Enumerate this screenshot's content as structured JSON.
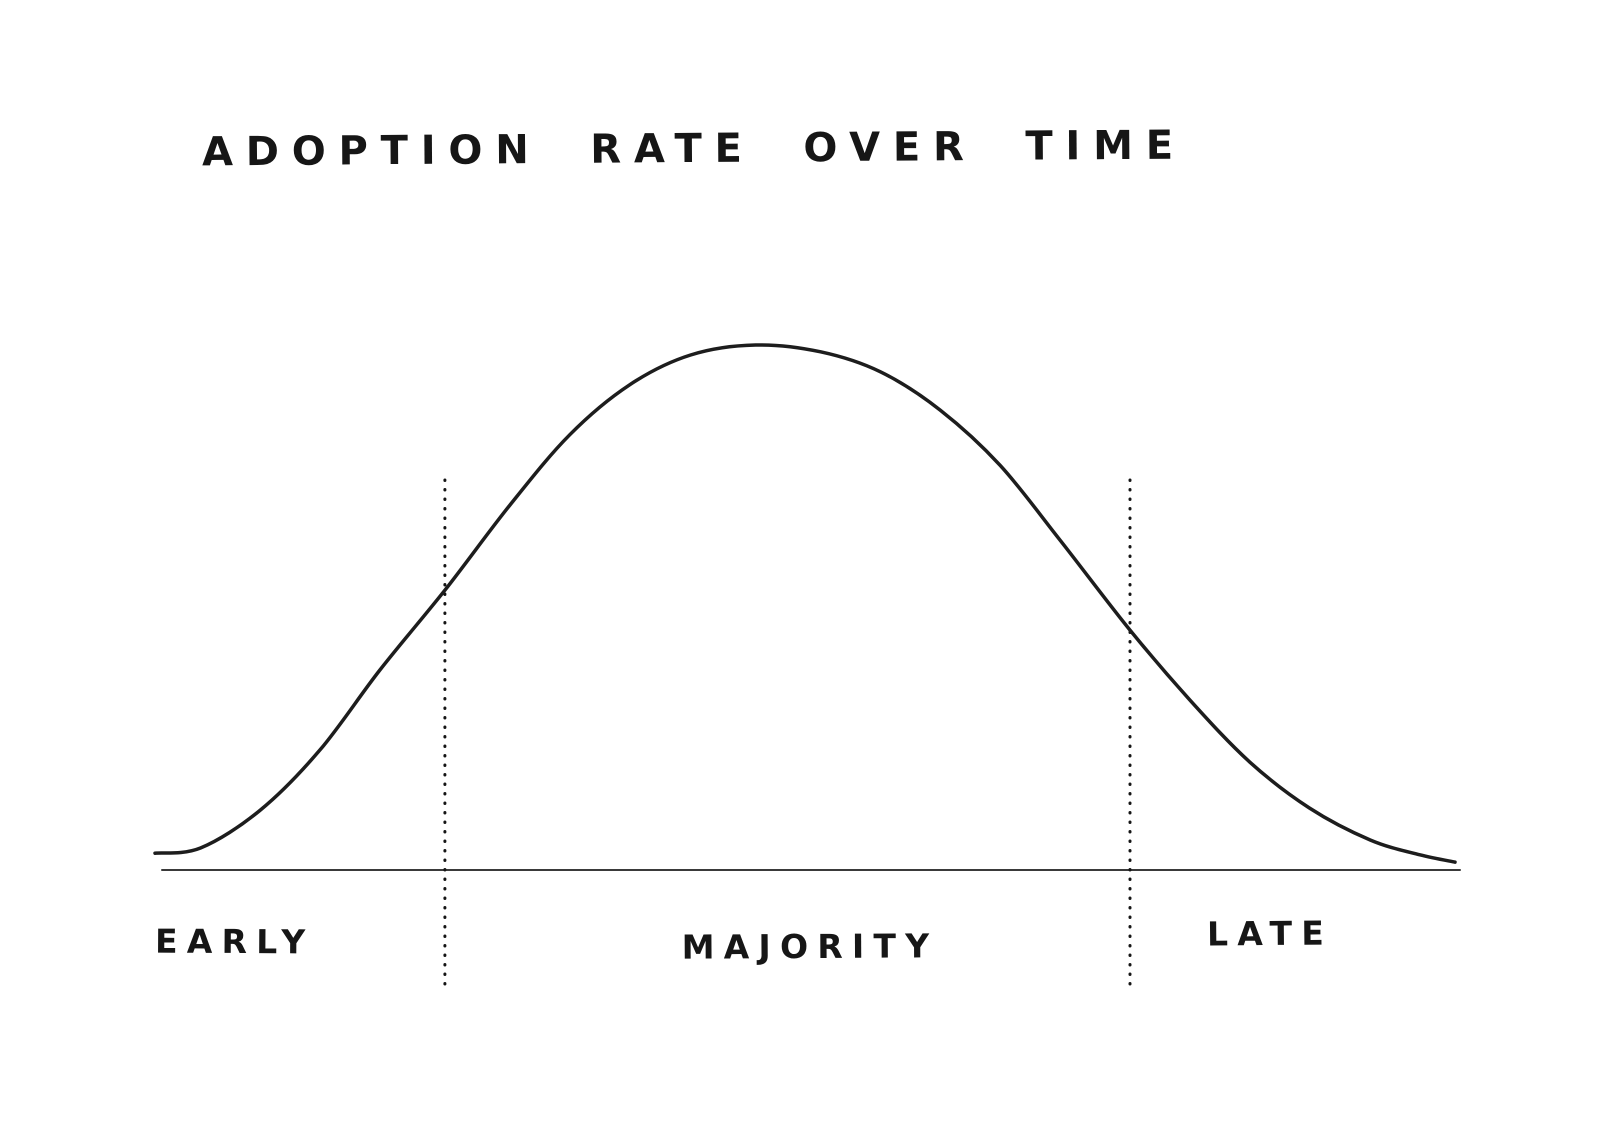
{
  "chart_data": {
    "type": "line",
    "title": "ADOPTION RATE OVER TIME",
    "xlabel": "",
    "ylabel": "",
    "x_range": [
      0,
      1
    ],
    "y_range": [
      0,
      1
    ],
    "grid": false,
    "legend": false,
    "style": "hand-drawn-sketch",
    "ink_color": "#1d1d1d",
    "background_color": "#ffffff",
    "curve": {
      "name": "adoption-rate-bell-curve",
      "x": [
        0.0,
        0.035,
        0.081,
        0.127,
        0.173,
        0.223,
        0.273,
        0.319,
        0.365,
        0.412,
        0.462,
        0.512,
        0.558,
        0.604,
        0.65,
        0.696,
        0.75,
        0.796,
        0.842,
        0.888,
        0.935,
        0.973,
        1.0
      ],
      "y": [
        0.032,
        0.042,
        0.114,
        0.229,
        0.381,
        0.533,
        0.695,
        0.829,
        0.924,
        0.981,
        1.0,
        0.987,
        0.949,
        0.876,
        0.771,
        0.629,
        0.457,
        0.324,
        0.206,
        0.118,
        0.057,
        0.029,
        0.015
      ]
    },
    "dividers_x": [
      0.223,
      0.75
    ],
    "segments": [
      {
        "label": "EARLY",
        "x_start": 0.0,
        "x_end": 0.223
      },
      {
        "label": "MAJORITY",
        "x_start": 0.223,
        "x_end": 0.75
      },
      {
        "label": "LATE",
        "x_start": 0.75,
        "x_end": 1.0
      }
    ]
  }
}
